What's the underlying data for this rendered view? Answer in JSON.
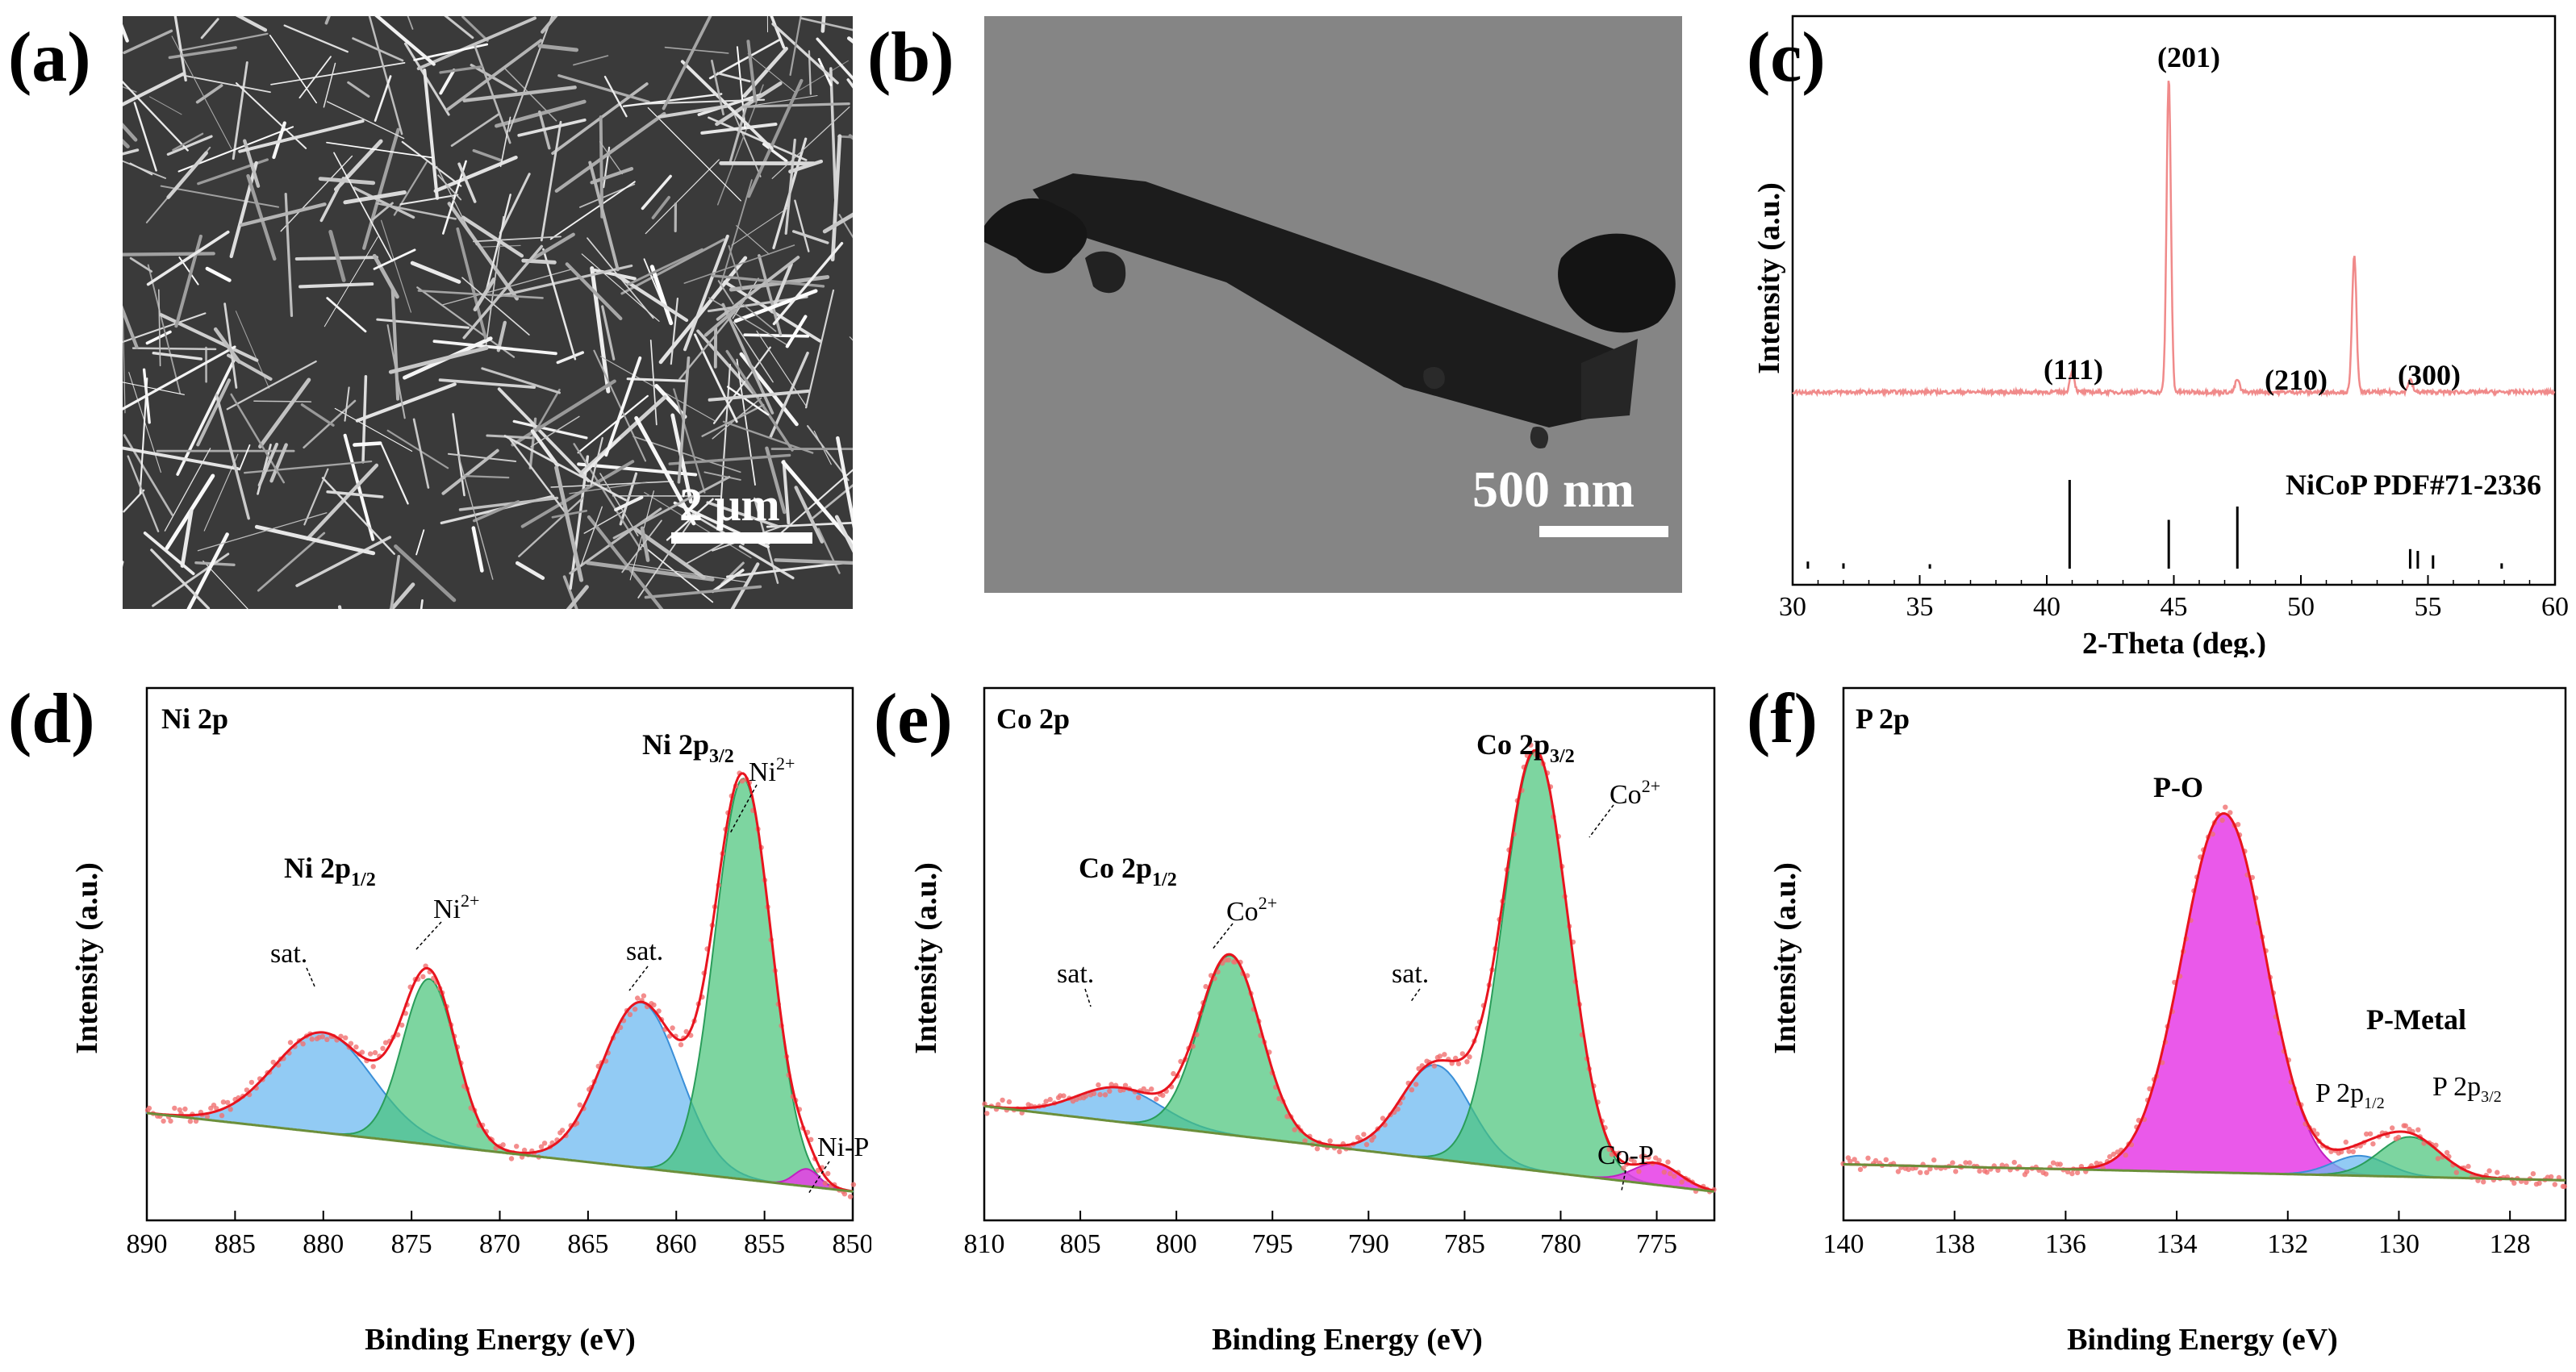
{
  "panels": {
    "a": {
      "label": "(a)",
      "scale_bar": "2 μm"
    },
    "b": {
      "label": "(b)",
      "scale_bar": "500 nm"
    },
    "c": {
      "label": "(c)"
    },
    "d": {
      "label": "(d)"
    },
    "e": {
      "label": "(e)"
    },
    "f": {
      "label": "(f)"
    }
  },
  "colors": {
    "xrd_line": "#f08a8a",
    "fit_red": "#e8141e",
    "dots": "#f07070",
    "blue_fill": "#8ec8f0",
    "green_fill": "#66cc8a",
    "magenta_fill": "#e040e0",
    "background_line": "#6b8f3a"
  },
  "chart_data": [
    {
      "panel": "c",
      "type": "line",
      "title": "",
      "xlabel": "2-Theta (deg.)",
      "ylabel": "Intensity (a.u.)",
      "xlim": [
        30,
        60
      ],
      "xticks": [
        "30",
        "35",
        "40",
        "45",
        "50",
        "55",
        "60"
      ],
      "reference_label": "NiCoP PDF#71-2336",
      "peaks": [
        {
          "x": 41.0,
          "height": 0.07,
          "label": "(111)"
        },
        {
          "x": 44.8,
          "height": 1.0,
          "label": "(201)"
        },
        {
          "x": 47.5,
          "height": 0.04,
          "label": "(210)"
        },
        {
          "x": 52.1,
          "height": 0.44,
          "label": ""
        },
        {
          "x": 54.3,
          "height": 0.04,
          "label": "(300)"
        }
      ],
      "reference_sticks": [
        {
          "x": 30.6,
          "h": 0.08
        },
        {
          "x": 32.0,
          "h": 0.06
        },
        {
          "x": 35.4,
          "h": 0.05
        },
        {
          "x": 40.9,
          "h": 1.0
        },
        {
          "x": 44.8,
          "h": 0.55
        },
        {
          "x": 47.5,
          "h": 0.7
        },
        {
          "x": 54.3,
          "h": 0.22
        },
        {
          "x": 54.6,
          "h": 0.2
        },
        {
          "x": 55.2,
          "h": 0.15
        },
        {
          "x": 57.9,
          "h": 0.06
        }
      ]
    },
    {
      "panel": "d",
      "type": "area",
      "title": "Ni 2p",
      "xlabel": "Binding Energy (eV)",
      "ylabel": "Intensity (a.u.)",
      "xlim": [
        890,
        850
      ],
      "xticks": [
        "890",
        "885",
        "880",
        "875",
        "870",
        "865",
        "860",
        "855",
        "850"
      ],
      "background": {
        "left": 0.2,
        "right": 0.02
      },
      "components": [
        {
          "name": "sat.",
          "center": 880.0,
          "height": 0.23,
          "width": 2.8,
          "color": "blue"
        },
        {
          "name": "Ni2+ (2p1/2)",
          "center": 874.0,
          "height": 0.38,
          "width": 1.5,
          "color": "green"
        },
        {
          "name": "sat.",
          "center": 862.0,
          "height": 0.38,
          "width": 2.2,
          "color": "blue"
        },
        {
          "name": "Ni2+ (2p3/2)",
          "center": 856.2,
          "height": 0.92,
          "width": 1.6,
          "color": "green"
        },
        {
          "name": "Ni-P",
          "center": 852.6,
          "height": 0.04,
          "width": 0.7,
          "color": "magenta"
        }
      ],
      "annotations": [
        {
          "text": "Ni 2p",
          "sup": "",
          "sub": ""
        },
        {
          "text": "Ni 2p",
          "sub": "3/2"
        },
        {
          "text": "Ni 2p",
          "sub": "1/2"
        },
        {
          "text": "Ni",
          "sup": "2+"
        },
        {
          "text": "sat."
        },
        {
          "text": "Ni-P"
        }
      ]
    },
    {
      "panel": "e",
      "type": "area",
      "title": "Co 2p",
      "xlabel": "Binding Energy (eV)",
      "ylabel": "Intensity (a.u.)",
      "xlim": [
        810,
        772
      ],
      "xticks": [
        "810",
        "805",
        "800",
        "795",
        "790",
        "785",
        "780",
        "775"
      ],
      "background": {
        "left": 0.22,
        "right": 0.02
      },
      "components": [
        {
          "name": "sat.",
          "center": 803.0,
          "height": 0.08,
          "width": 2.2,
          "color": "blue"
        },
        {
          "name": "Co2+ (2p1/2)",
          "center": 797.2,
          "height": 0.42,
          "width": 1.6,
          "color": "green"
        },
        {
          "name": "sat.",
          "center": 786.5,
          "height": 0.22,
          "width": 1.8,
          "color": "blue"
        },
        {
          "name": "Co2+ (2p3/2)",
          "center": 781.3,
          "height": 0.98,
          "width": 1.7,
          "color": "green"
        },
        {
          "name": "Co-P",
          "center": 775.0,
          "height": 0.05,
          "width": 1.2,
          "color": "magenta"
        }
      ]
    },
    {
      "panel": "f",
      "type": "area",
      "title": "P 2p",
      "xlabel": "Binding Energy (eV)",
      "ylabel": "Intensity (a.u.)",
      "xlim": [
        140,
        127
      ],
      "xticks": [
        "140",
        "138",
        "136",
        "134",
        "132",
        "130",
        "128"
      ],
      "background": {
        "left": 0.1,
        "right": 0.06
      },
      "components": [
        {
          "name": "P-O",
          "center": 133.15,
          "height": 0.9,
          "width": 0.75,
          "color": "magenta"
        },
        {
          "name": "P 2p1/2",
          "center": 130.7,
          "height": 0.05,
          "width": 0.5,
          "color": "blue"
        },
        {
          "name": "P 2p3/2",
          "center": 129.8,
          "height": 0.1,
          "width": 0.55,
          "color": "green"
        }
      ]
    }
  ],
  "text": {
    "c_peak_111": "(111)",
    "c_peak_201": "(201)",
    "c_peak_210": "(210)",
    "c_peak_300": "(300)",
    "c_ref": "NiCoP PDF#71-2336",
    "c_xlabel": "2-Theta (deg.)",
    "ylabel": "Intensity (a.u.)",
    "be_xlabel": "Binding Energy (eV)",
    "d_title": "Ni 2p",
    "d_sat": "sat.",
    "d_nip": "Ni-P",
    "d_main": "Ni 2p",
    "d_sub32": "3/2",
    "d_sub12": "1/2",
    "d_ni": "Ni",
    "d_sup": "2+",
    "e_title": "Co 2p",
    "e_sat": "sat.",
    "e_cop": "Co-P",
    "e_main": "Co 2p",
    "e_co": "Co",
    "f_title": "P 2p",
    "f_po": "P-O",
    "f_pmetal": "P-Metal",
    "f_p2p": "P 2p"
  }
}
